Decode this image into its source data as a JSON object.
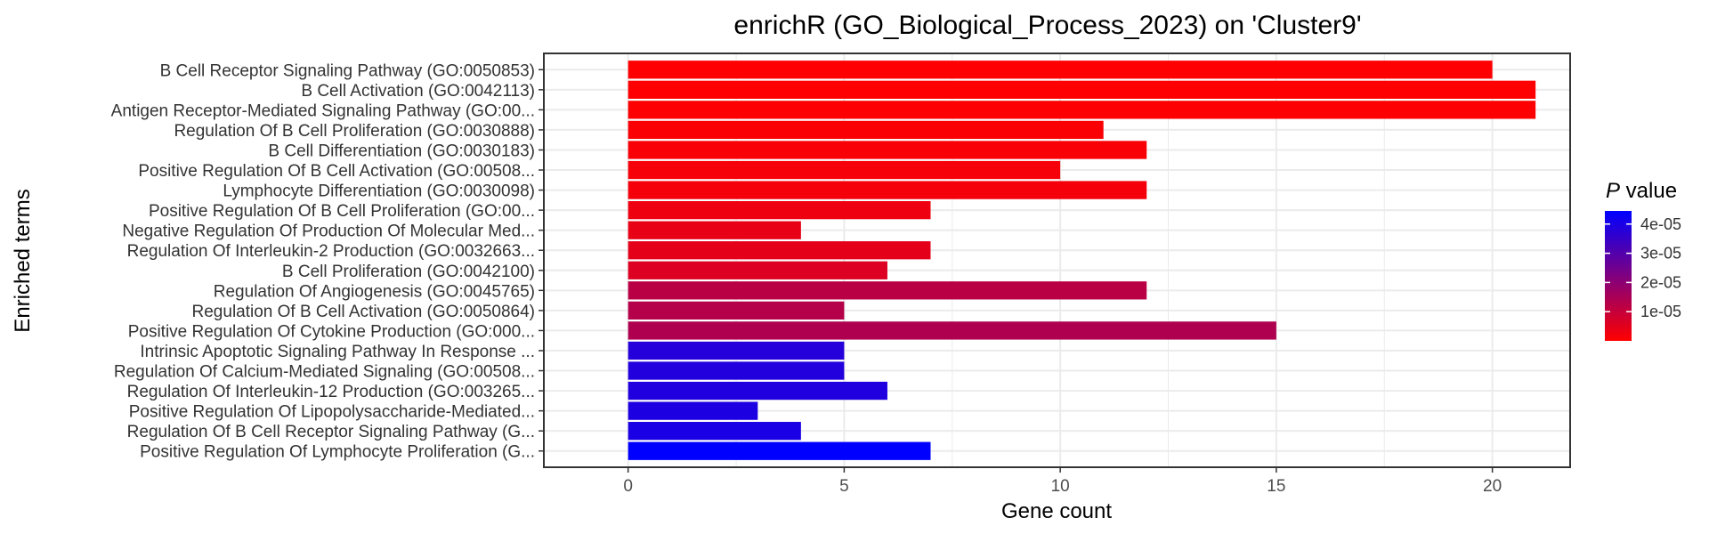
{
  "chart_data": {
    "type": "bar",
    "orientation": "horizontal",
    "title": "enrichR (GO_Biological_Process_2023) on 'Cluster9'",
    "xlabel": "Gene count",
    "ylabel": "Enriched terms",
    "xlim": [
      0,
      21.8
    ],
    "xticks": [
      "0",
      "5",
      "10",
      "15",
      "20"
    ],
    "grid": true,
    "categories": [
      "B Cell Receptor Signaling Pathway (GO:0050853)",
      "B Cell Activation (GO:0042113)",
      "Antigen Receptor-Mediated Signaling Pathway (GO:00...",
      "Regulation Of B Cell Proliferation (GO:0030888)",
      "B Cell Differentiation (GO:0030183)",
      "Positive Regulation Of B Cell Activation (GO:00508...",
      "Lymphocyte Differentiation (GO:0030098)",
      "Positive Regulation Of B Cell Proliferation (GO:00...",
      "Negative Regulation Of Production Of Molecular Med...",
      "Regulation Of Interleukin-2 Production (GO:0032663...",
      "B Cell Proliferation (GO:0042100)",
      "Regulation Of Angiogenesis (GO:0045765)",
      "Regulation Of B Cell Activation (GO:0050864)",
      "Positive Regulation Of Cytokine Production (GO:000...",
      "Intrinsic Apoptotic Signaling Pathway In Response ...",
      "Regulation Of Calcium-Mediated Signaling (GO:00508...",
      "Regulation Of Interleukin-12 Production (GO:003265...",
      "Positive Regulation Of Lipopolysaccharide-Mediated...",
      "Regulation Of B Cell Receptor Signaling Pathway (G...",
      "Positive Regulation Of Lymphocyte Proliferation (G..."
    ],
    "values": [
      20,
      21,
      21,
      11,
      12,
      10,
      12,
      7,
      4,
      7,
      6,
      12,
      5,
      15,
      5,
      5,
      6,
      3,
      4,
      7
    ],
    "p_values": [
      1e-07,
      2e-07,
      3e-07,
      8e-07,
      1e-06,
      1.5e-06,
      1.8e-06,
      3e-06,
      4e-06,
      4.5e-06,
      6e-06,
      1.2e-05,
      1.3e-05,
      1.4e-05,
      3.8e-05,
      3.85e-05,
      3.9e-05,
      3.95e-05,
      4e-05,
      4.45e-05
    ],
    "color_scale": {
      "title_italic": "P",
      "title_rest": " value",
      "low_color": "#ff0000",
      "high_color": "#0000ff",
      "domain": [
        0,
        4.45e-05
      ],
      "ticks": [
        1e-05,
        2e-05,
        3e-05,
        4e-05
      ],
      "tick_labels": [
        "1e-05",
        "2e-05",
        "3e-05",
        "4e-05"
      ]
    }
  }
}
